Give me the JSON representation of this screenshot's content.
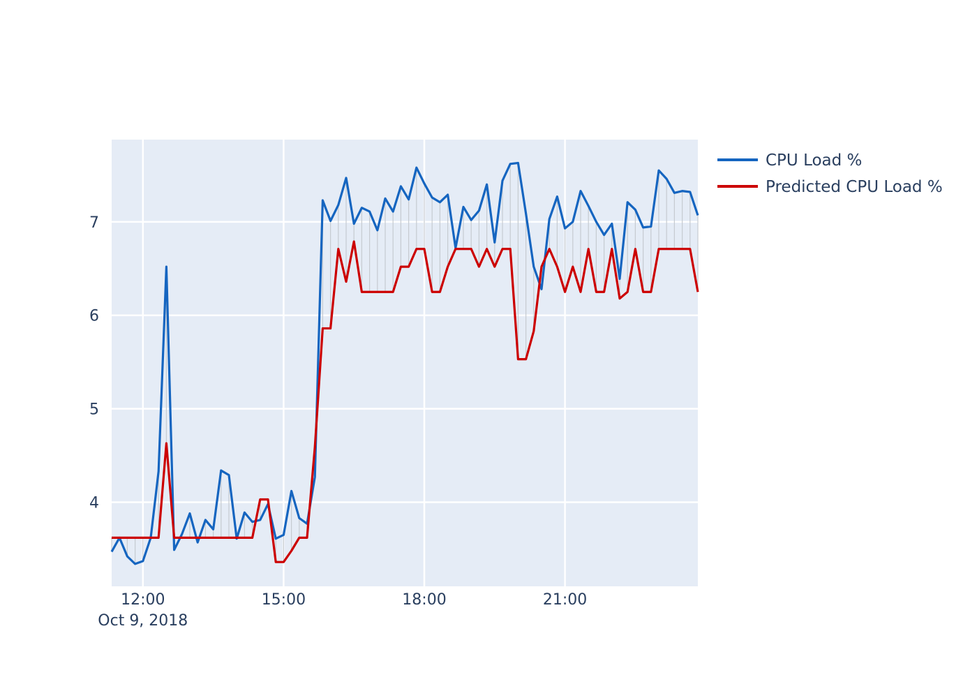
{
  "chart_data": {
    "type": "line",
    "title": "",
    "xlabel": "",
    "ylabel": "",
    "x_start": "2018-10-09 11:20",
    "x_step_minutes": 10,
    "x_range": [
      "2018-10-09 11:20",
      "2018-10-09 23:50"
    ],
    "ylim": [
      3.1,
      7.88
    ],
    "y_ticks": [
      4,
      5,
      6,
      7
    ],
    "x_ticks": [
      {
        "time": "2018-10-09 12:00",
        "label": "12:00",
        "sublabel": "Oct 9, 2018"
      },
      {
        "time": "2018-10-09 15:00",
        "label": "15:00",
        "sublabel": ""
      },
      {
        "time": "2018-10-09 18:00",
        "label": "18:00",
        "sublabel": ""
      },
      {
        "time": "2018-10-09 21:00",
        "label": "21:00",
        "sublabel": ""
      }
    ],
    "grid": true,
    "legend_position": "top-right",
    "connectors": true,
    "series": [
      {
        "name": "CPU Load %",
        "color": "#1565c0",
        "values": [
          3.47,
          3.62,
          3.42,
          3.34,
          3.37,
          3.62,
          4.33,
          6.52,
          3.49,
          3.66,
          3.88,
          3.57,
          3.81,
          3.71,
          4.34,
          4.29,
          3.61,
          3.89,
          3.79,
          3.81,
          3.98,
          3.61,
          3.65,
          4.12,
          3.83,
          3.77,
          4.27,
          7.23,
          7.01,
          7.18,
          7.47,
          6.98,
          7.15,
          7.11,
          6.91,
          7.25,
          7.11,
          7.38,
          7.24,
          7.58,
          7.41,
          7.26,
          7.21,
          7.29,
          6.72,
          7.16,
          7.02,
          7.12,
          7.4,
          6.78,
          7.44,
          7.62,
          7.63,
          7.09,
          6.52,
          6.28,
          7.03,
          7.27,
          6.93,
          7.0,
          7.33,
          7.17,
          7.0,
          6.86,
          6.98,
          6.39,
          7.21,
          7.13,
          6.94,
          6.95,
          7.55,
          7.46,
          7.31,
          7.33,
          7.32,
          7.07
        ]
      },
      {
        "name": "Predicted CPU Load %",
        "color": "#cc0000",
        "values": [
          3.62,
          3.62,
          3.62,
          3.62,
          3.62,
          3.62,
          3.62,
          4.63,
          3.62,
          3.62,
          3.62,
          3.62,
          3.62,
          3.62,
          3.62,
          3.62,
          3.62,
          3.62,
          3.62,
          4.03,
          4.03,
          3.36,
          3.36,
          3.48,
          3.62,
          3.62,
          4.59,
          5.86,
          5.86,
          6.71,
          6.36,
          6.79,
          6.25,
          6.25,
          6.25,
          6.25,
          6.25,
          6.52,
          6.52,
          6.71,
          6.71,
          6.25,
          6.25,
          6.52,
          6.71,
          6.71,
          6.71,
          6.52,
          6.71,
          6.52,
          6.71,
          6.71,
          5.53,
          5.53,
          5.83,
          6.52,
          6.71,
          6.52,
          6.25,
          6.52,
          6.25,
          6.71,
          6.25,
          6.25,
          6.71,
          6.18,
          6.25,
          6.71,
          6.25,
          6.25,
          6.71,
          6.71,
          6.71,
          6.71,
          6.71,
          6.25
        ]
      }
    ]
  }
}
